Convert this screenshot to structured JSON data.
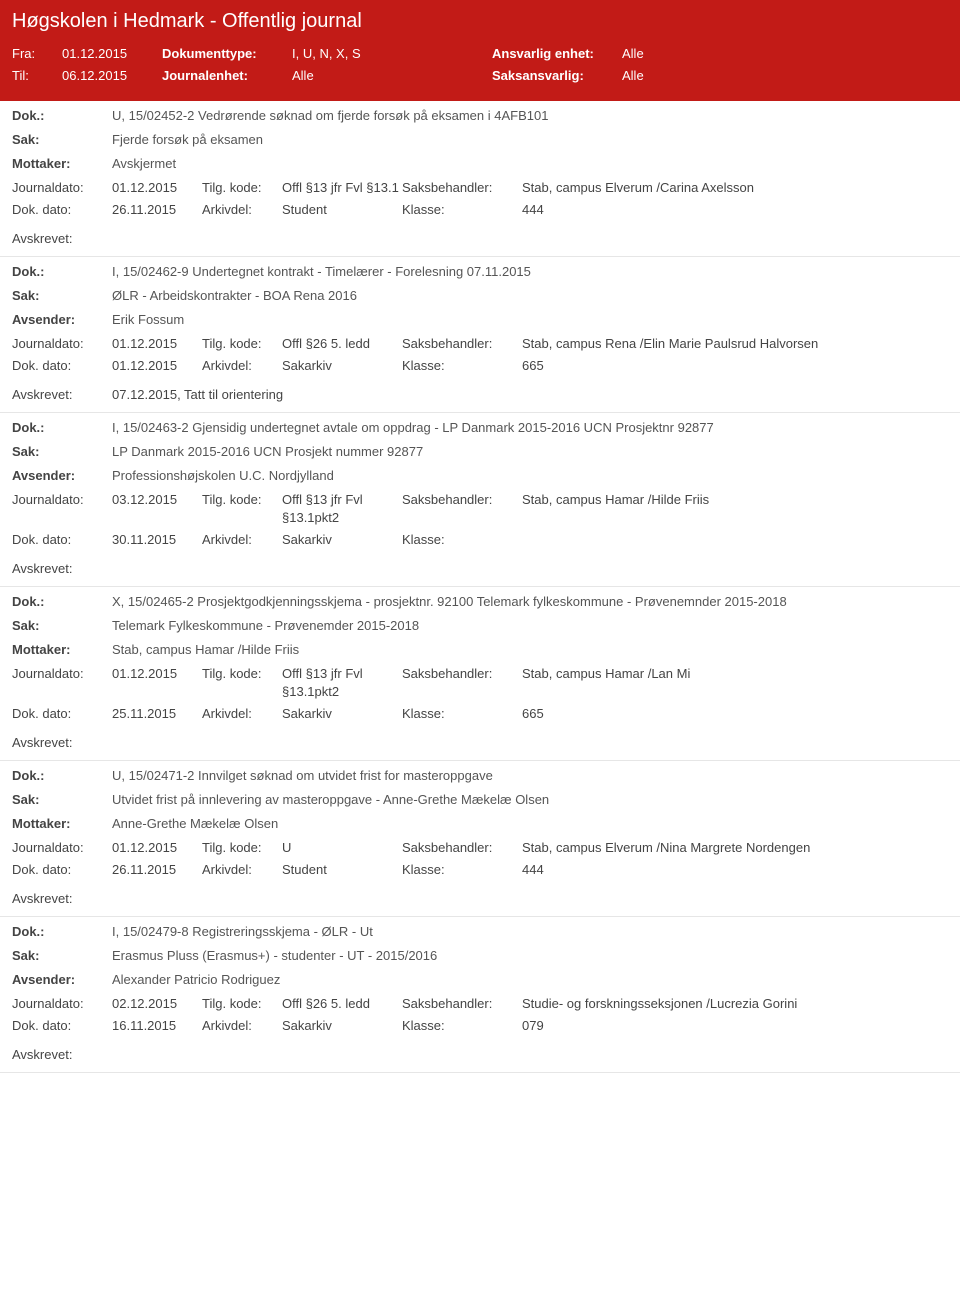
{
  "header": {
    "title": "Høgskolen i Hedmark - Offentlig journal",
    "fra_label": "Fra:",
    "fra": "01.12.2015",
    "til_label": "Til:",
    "til": "06.12.2015",
    "doktype_label": "Dokumenttype:",
    "doktype": "I, U, N, X, S",
    "journalenhet_label": "Journalenhet:",
    "journalenhet": "Alle",
    "ansvarlig_label": "Ansvarlig enhet:",
    "ansvarlig": "Alle",
    "saksansvarlig_label": "Saksansvarlig:",
    "saksansvarlig": "Alle"
  },
  "labels": {
    "dok": "Dok.:",
    "sak": "Sak:",
    "mottaker": "Mottaker:",
    "avsender": "Avsender:",
    "journaldato": "Journaldato:",
    "tilgkode": "Tilg. kode:",
    "saksbehandler": "Saksbehandler:",
    "dokdato": "Dok. dato:",
    "arkivdel": "Arkivdel:",
    "klasse": "Klasse:",
    "avskrevet": "Avskrevet:"
  },
  "entries": [
    {
      "dok": "U, 15/02452-2 Vedrørende søknad om fjerde forsøk på eksamen i 4AFB101",
      "sak": "Fjerde forsøk på eksamen",
      "party_label": "Mottaker:",
      "party": "Avskjermet",
      "journaldato": "01.12.2015",
      "tilgkode": "Offl §13 jfr Fvl §13.1",
      "saksbehandler": "Stab, campus Elverum /Carina Axelsson",
      "dokdato": "26.11.2015",
      "arkivdel": "Student",
      "klasse": "444",
      "avskrevet": ""
    },
    {
      "dok": "I, 15/02462-9 Undertegnet kontrakt - Timelærer - Forelesning 07.11.2015",
      "sak": "ØLR - Arbeidskontrakter - BOA Rena 2016",
      "party_label": "Avsender:",
      "party": "Erik Fossum",
      "journaldato": "01.12.2015",
      "tilgkode": "Offl §26 5. ledd",
      "saksbehandler": "Stab, campus Rena /Elin Marie Paulsrud Halvorsen",
      "dokdato": "01.12.2015",
      "arkivdel": "Sakarkiv",
      "klasse": "665",
      "avskrevet": "07.12.2015, Tatt til orientering"
    },
    {
      "dok": "I, 15/02463-2 Gjensidig undertegnet avtale om oppdrag - LP Danmark 2015-2016 UCN Prosjektnr 92877",
      "sak": "LP Danmark 2015-2016 UCN Prosjekt nummer 92877",
      "party_label": "Avsender:",
      "party": "Professionshøjskolen U.C. Nordjylland",
      "journaldato": "03.12.2015",
      "tilgkode": "Offl §13 jfr Fvl §13.1pkt2",
      "saksbehandler": "Stab, campus Hamar /Hilde Friis",
      "dokdato": "30.11.2015",
      "arkivdel": "Sakarkiv",
      "klasse": "",
      "avskrevet": ""
    },
    {
      "dok": "X, 15/02465-2 Prosjektgodkjenningsskjema - prosjektnr. 92100 Telemark fylkeskommune - Prøvenemnder 2015-2018",
      "sak": "Telemark Fylkeskommune - Prøvenemder 2015-2018",
      "party_label": "Mottaker:",
      "party": "Stab, campus Hamar /Hilde Friis",
      "journaldato": "01.12.2015",
      "tilgkode": "Offl §13 jfr Fvl §13.1pkt2",
      "saksbehandler": "Stab, campus Hamar /Lan Mi",
      "dokdato": "25.11.2015",
      "arkivdel": "Sakarkiv",
      "klasse": "665",
      "avskrevet": ""
    },
    {
      "dok": "U, 15/02471-2 Innvilget søknad om utvidet frist for masteroppgave",
      "sak": "Utvidet frist på innlevering av masteroppgave - Anne-Grethe Mækelæ Olsen",
      "party_label": "Mottaker:",
      "party": "Anne-Grethe Mækelæ Olsen",
      "journaldato": "01.12.2015",
      "tilgkode": "U",
      "saksbehandler": "Stab, campus Elverum /Nina Margrete Nordengen",
      "dokdato": "26.11.2015",
      "arkivdel": "Student",
      "klasse": "444",
      "avskrevet": ""
    },
    {
      "dok": "I, 15/02479-8 Registreringsskjema - ØLR - Ut",
      "sak": "Erasmus Pluss (Erasmus+) - studenter - UT - 2015/2016",
      "party_label": "Avsender:",
      "party": "Alexander Patricio Rodriguez",
      "journaldato": "02.12.2015",
      "tilgkode": "Offl §26 5. ledd",
      "saksbehandler": "Studie- og forskningsseksjonen /Lucrezia Gorini",
      "dokdato": "16.11.2015",
      "arkivdel": "Sakarkiv",
      "klasse": "079",
      "avskrevet": ""
    }
  ]
}
